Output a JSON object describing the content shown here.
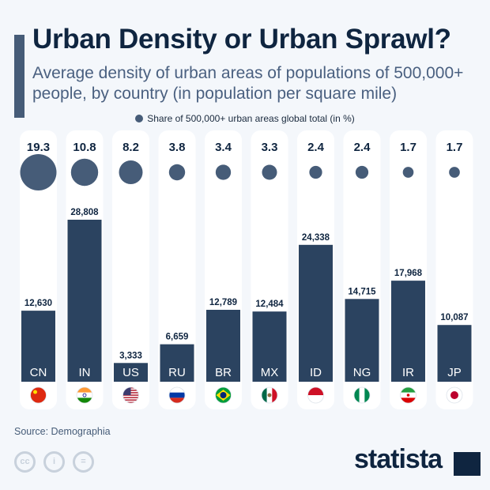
{
  "header": {
    "title": "Urban Density or Urban Sprawl?",
    "subtitle": "Average density of urban areas of populations of 500,000+ people, by country (in population per square mile)"
  },
  "chart_data": {
    "type": "bar",
    "categories": [
      "CN",
      "IN",
      "US",
      "RU",
      "BR",
      "MX",
      "ID",
      "NG",
      "IR",
      "JP"
    ],
    "series": [
      {
        "name": "Average density (population per square mile)",
        "values": [
          12630,
          28808,
          3333,
          6659,
          12789,
          12484,
          24338,
          14715,
          17968,
          10087
        ],
        "labels": [
          "12,630",
          "28,808",
          "3,333",
          "6,659",
          "12,789",
          "12,484",
          "24,338",
          "14,715",
          "17,968",
          "10,087"
        ]
      },
      {
        "name": "Share of 500,000+ urban areas global total (in %)",
        "values": [
          19.3,
          10.8,
          8.2,
          3.8,
          3.4,
          3.3,
          2.4,
          2.4,
          1.7,
          1.7
        ],
        "labels": [
          "19.3",
          "10.8",
          "8.2",
          "3.8",
          "3.4",
          "3.3",
          "2.4",
          "2.4",
          "1.7",
          "1.7"
        ]
      }
    ],
    "legend": "Share of 500,000+ urban areas global total (in %)",
    "flags": [
      "china-flag",
      "india-flag",
      "usa-flag",
      "russia-flag",
      "brazil-flag",
      "mexico-flag",
      "indonesia-flag",
      "nigeria-flag",
      "iran-flag",
      "japan-flag"
    ],
    "colors": {
      "bar": "#2b4360",
      "bubble": "#465c78",
      "column_bg": "#ffffff"
    }
  },
  "footer": {
    "source": "Source: Demographia",
    "logo": "statista"
  }
}
